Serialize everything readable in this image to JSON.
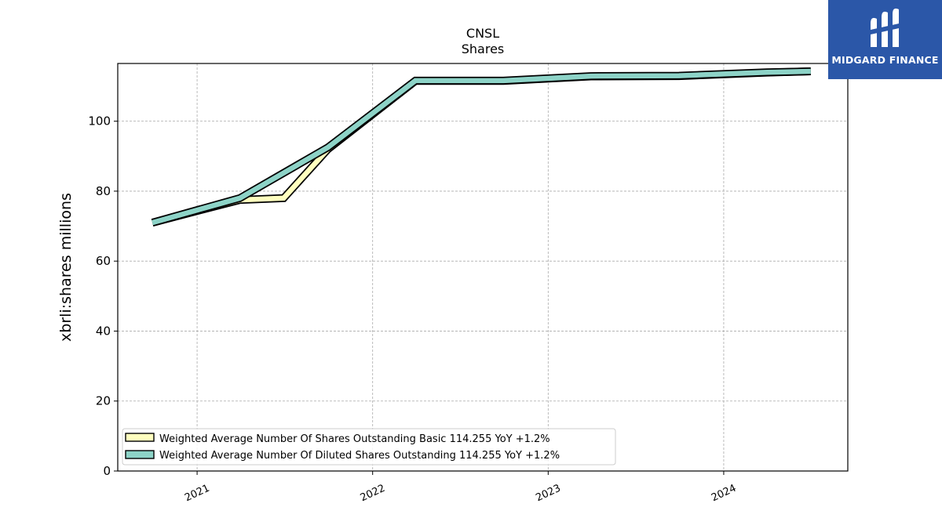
{
  "chart_data": {
    "type": "line",
    "title": "CNSL",
    "subtitle": "Shares",
    "ylabel": "xbrli:shares millions",
    "xlabel": "",
    "ylim": [
      0,
      116.5
    ],
    "xlim": [
      "2020-07-20",
      "2024-09-15"
    ],
    "x_ticks": [
      "2021",
      "2022",
      "2023",
      "2024"
    ],
    "y_ticks": [
      0,
      20,
      40,
      60,
      80,
      100
    ],
    "grid": true,
    "legend_position": "lower-left",
    "series": [
      {
        "name": "Weighted Average Number Of Shares Outstanding Basic  114.255 YoY +1.2%",
        "color": "#ffffbf",
        "x": [
          "2020-09-30",
          "2021-03-31",
          "2021-06-30",
          "2021-09-30",
          "2022-03-31",
          "2022-09-30",
          "2023-03-31",
          "2023-09-30",
          "2024-03-31",
          "2024-06-30"
        ],
        "y": [
          71.0,
          77.5,
          78.0,
          92.0,
          111.5,
          111.5,
          112.8,
          112.9,
          113.9,
          114.255
        ]
      },
      {
        "name": "Weighted Average Number Of Diluted Shares Outstanding  114.255 YoY +1.2%",
        "color": "#8dd3c7",
        "x": [
          "2020-09-30",
          "2021-03-31",
          "2021-09-30",
          "2022-03-31",
          "2022-09-30",
          "2023-03-31",
          "2023-09-30",
          "2024-03-31",
          "2024-06-30"
        ],
        "y": [
          71.0,
          78.0,
          92.5,
          111.6,
          111.6,
          112.9,
          113.0,
          114.0,
          114.255
        ]
      }
    ]
  },
  "logo": {
    "text": "MIDGARD FINANCE",
    "bg": "#2b57a8"
  }
}
